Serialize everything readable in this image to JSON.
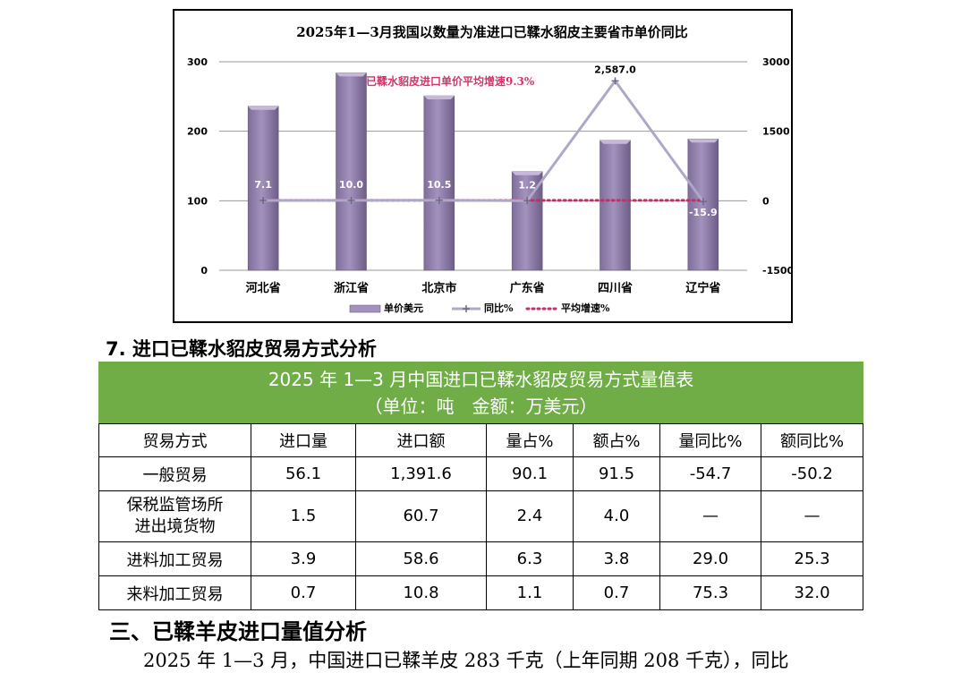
{
  "chart_data": {
    "type": "bar",
    "title": "2025年1—3月我国以数量为准进口已鞣水貂皮主要省市单价同比",
    "annotation": "已鞣水貂皮进口单价平均增速9.3%",
    "categories": [
      "河北省",
      "浙江省",
      "北京市",
      "广东省",
      "四川省",
      "辽宁省"
    ],
    "series": [
      {
        "name": "单价美元",
        "type": "bar",
        "axis": "left",
        "values": [
          236,
          284,
          251,
          142,
          187,
          189
        ]
      },
      {
        "name": "同比%",
        "type": "line",
        "axis": "right",
        "values": [
          7.1,
          10.0,
          10.5,
          1.2,
          2587.0,
          -15.9
        ],
        "labels": [
          "7.1",
          "10.0",
          "10.5",
          "1.2",
          "2,587.0",
          "-15.9"
        ]
      },
      {
        "name": "平均增速%",
        "type": "line",
        "axis": "right",
        "values": [
          9.3,
          9.3,
          9.3,
          9.3,
          9.3,
          9.3
        ]
      }
    ],
    "ylim_left": [
      0,
      300
    ],
    "yticks_left": [
      "0",
      "100",
      "200",
      "300"
    ],
    "ylim_right": [
      -1500,
      3000
    ],
    "yticks_right": [
      "-1500",
      "0",
      "1500",
      "3000"
    ],
    "grid": true,
    "legend_placement": "bottom",
    "colors": {
      "bar": "#a392bd",
      "yoy_line": "#b0a6c8",
      "avg_line": "#c0306a",
      "annotation": "#d6336c"
    }
  },
  "section7_heading": "7. 进口已鞣水貂皮贸易方式分析",
  "table": {
    "title_line1": "2025 年 1—3 月中国进口已鞣水貂皮贸易方式量值表",
    "title_line2": "（单位：吨　金额：万美元）",
    "headers": [
      "贸易方式",
      "进口量",
      "进口额",
      "量占%",
      "额占%",
      "量同比%",
      "额同比%"
    ],
    "rows": [
      {
        "label": "一般贸易",
        "cells": [
          "56.1",
          "1,391.6",
          "90.1",
          "91.5",
          "-54.7",
          "-50.2"
        ]
      },
      {
        "label_line1": "保税监管场所",
        "label_line2": "进出境货物",
        "cells": [
          "1.5",
          "60.7",
          "2.4",
          "4.0",
          "—",
          "—"
        ]
      },
      {
        "label": "进料加工贸易",
        "cells": [
          "3.9",
          "58.6",
          "6.3",
          "3.8",
          "29.0",
          "25.3"
        ]
      },
      {
        "label": "来料加工贸易",
        "cells": [
          "0.7",
          "10.8",
          "1.1",
          "0.7",
          "75.3",
          "32.0"
        ]
      }
    ],
    "title_bg": "#70ad47"
  },
  "section3_heading": "三、已鞣羊皮进口量值分析",
  "paragraph": "2025 年 1—3 月，中国进口已鞣羊皮 283 千克（上年同期 208 千克），同比"
}
